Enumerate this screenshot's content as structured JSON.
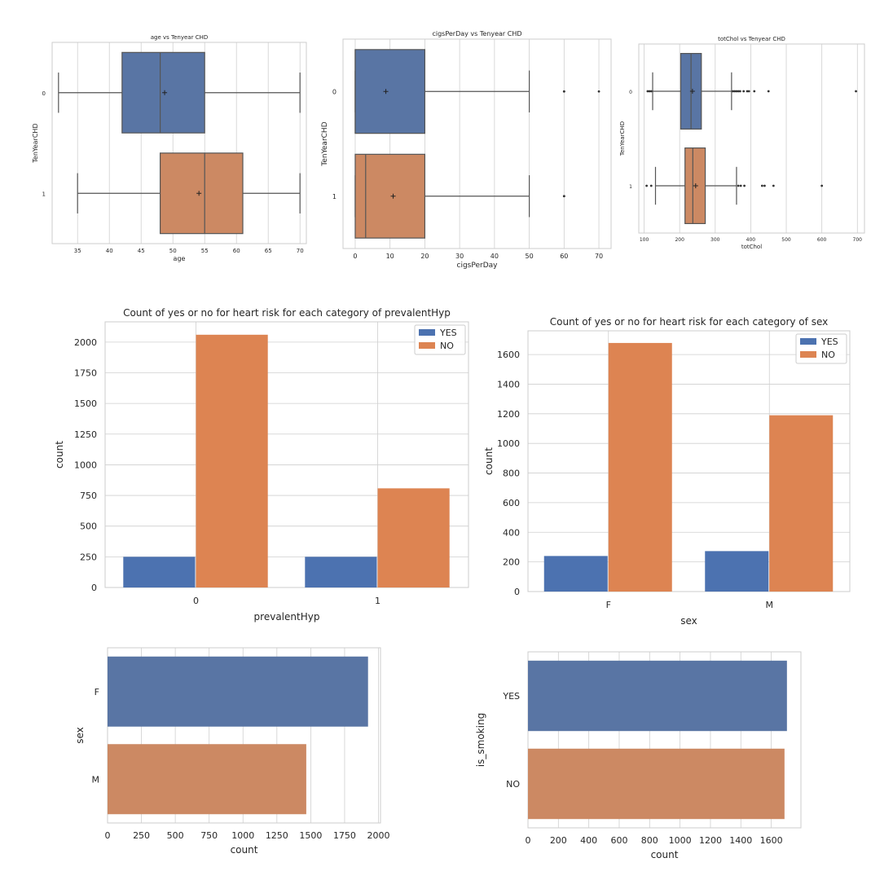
{
  "colors": {
    "blue": "#4c72b0",
    "orange": "#dd8452",
    "blue_box": "#5975a4",
    "orange_box": "#cc8963",
    "grid": "#cfcfcf",
    "frame": "#cccccc",
    "whisker": "#555555"
  },
  "chart_data": [
    {
      "id": "box-age",
      "type": "box",
      "orient": "h",
      "title": "age vs Tenyear CHD",
      "xlabel": "age",
      "ylabel": "TenYearCHD",
      "categories": [
        "0",
        "1"
      ],
      "xlim": [
        31,
        71
      ],
      "xticks": [
        35,
        40,
        45,
        50,
        55,
        60,
        65,
        70
      ],
      "boxes": [
        {
          "q1": 42,
          "median": 48,
          "q3": 55,
          "whislo": 32,
          "whishi": 70,
          "mean": 48.7,
          "fliers": []
        },
        {
          "q1": 48,
          "median": 55,
          "q3": 61,
          "whislo": 35,
          "whishi": 70,
          "mean": 54.1,
          "fliers": []
        }
      ]
    },
    {
      "id": "box-cigs",
      "type": "box",
      "orient": "h",
      "title": "cigsPerDay vs Tenyear CHD",
      "xlabel": "cigsPerDay",
      "ylabel": "TenYearCHD",
      "categories": [
        "0",
        "1"
      ],
      "xlim": [
        -3.5,
        73.5
      ],
      "xticks": [
        0,
        10,
        20,
        30,
        40,
        50,
        60,
        70
      ],
      "boxes": [
        {
          "q1": 0,
          "median": 0,
          "q3": 20,
          "whislo": 0,
          "whishi": 50,
          "mean": 8.8,
          "fliers": [
            60,
            60,
            70
          ]
        },
        {
          "q1": 0,
          "median": 3,
          "q3": 20,
          "whislo": 0,
          "whishi": 50,
          "mean": 10.9,
          "fliers": [
            60,
            60
          ]
        }
      ]
    },
    {
      "id": "box-chol",
      "type": "box",
      "orient": "h",
      "title": "totChol vs Tenyear CHD",
      "xlabel": "totChol",
      "ylabel": "TenYearCHD",
      "categories": [
        "0",
        "1"
      ],
      "xlim": [
        85,
        720
      ],
      "xticks": [
        100,
        200,
        300,
        400,
        500,
        600,
        700
      ],
      "boxes": [
        {
          "q1": 203,
          "median": 232,
          "q3": 261,
          "whislo": 124,
          "whishi": 346,
          "mean": 236,
          "fliers": [
            110,
            115,
            120,
            350,
            355,
            360,
            365,
            370,
            380,
            390,
            395,
            410,
            450,
            696
          ]
        },
        {
          "q1": 215,
          "median": 237,
          "q3": 272,
          "whislo": 132,
          "whishi": 360,
          "mean": 245,
          "fliers": [
            107,
            120,
            365,
            372,
            382,
            432,
            439,
            464,
            600
          ]
        }
      ]
    },
    {
      "id": "bar-prevhyp",
      "type": "bar",
      "title": "Count of yes or no for heart risk for each category of prevalentHyp",
      "xlabel": "prevalentHyp",
      "ylabel": "count",
      "categories": [
        "0",
        "1"
      ],
      "ylim": [
        0,
        2165
      ],
      "yticks": [
        0,
        250,
        500,
        750,
        1000,
        1250,
        1500,
        1750,
        2000
      ],
      "legend": "top-right",
      "series": [
        {
          "name": "YES",
          "values": [
            250,
            250
          ]
        },
        {
          "name": "NO",
          "values": [
            2060,
            808
          ]
        }
      ]
    },
    {
      "id": "bar-sex",
      "type": "bar",
      "title": "Count of yes or no for heart risk for each category of sex",
      "xlabel": "sex",
      "ylabel": "count",
      "categories": [
        "F",
        "M"
      ],
      "ylim": [
        0,
        1760
      ],
      "yticks": [
        0,
        200,
        400,
        600,
        800,
        1000,
        1200,
        1400,
        1600
      ],
      "legend": "top-right",
      "series": [
        {
          "name": "YES",
          "values": [
            240,
            273
          ]
        },
        {
          "name": "NO",
          "values": [
            1678,
            1190
          ]
        }
      ]
    },
    {
      "id": "hbar-sex",
      "type": "barh",
      "title": "",
      "xlabel": "count",
      "ylabel": "sex",
      "categories": [
        "F",
        "M"
      ],
      "xlim": [
        0,
        2015
      ],
      "xticks": [
        0,
        250,
        500,
        750,
        1000,
        1250,
        1500,
        1750,
        2000
      ],
      "values": [
        1923,
        1467
      ]
    },
    {
      "id": "hbar-smoking",
      "type": "barh",
      "title": "",
      "xlabel": "count",
      "ylabel": "is_smoking",
      "categories": [
        "YES",
        "NO"
      ],
      "xlim": [
        0,
        1795
      ],
      "xticks": [
        0,
        200,
        400,
        600,
        800,
        1000,
        1200,
        1400,
        1600
      ],
      "values": [
        1703,
        1687
      ]
    }
  ]
}
